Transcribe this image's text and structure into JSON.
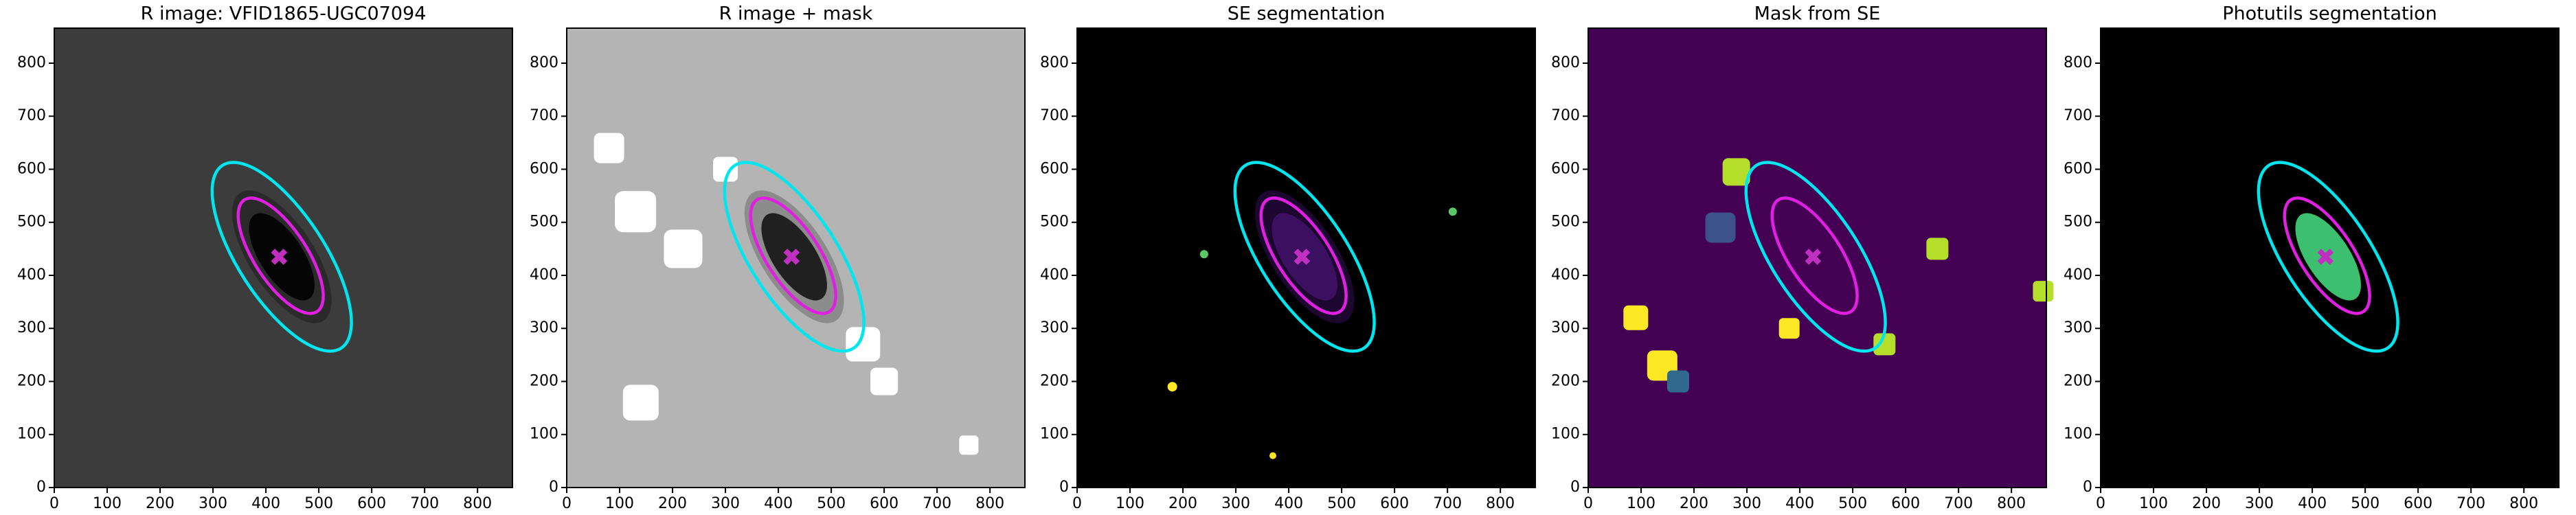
{
  "chart_data": [
    {
      "type": "image",
      "title": "R image: VFID1865-UGC07094",
      "background": "#3c3c3c",
      "xlim": [
        0,
        866
      ],
      "ylim": [
        0,
        866
      ],
      "xticks": [
        0,
        100,
        200,
        300,
        400,
        500,
        600,
        700,
        800
      ],
      "yticks": [
        0,
        100,
        200,
        300,
        400,
        500,
        600,
        700,
        800
      ],
      "ellipses": [
        {
          "center": [
            430,
            435
          ],
          "semi_major": 206,
          "semi_minor": 82,
          "angle": -57,
          "color": "#00e5ee"
        },
        {
          "center": [
            428,
            437
          ],
          "semi_major": 126,
          "semi_minor": 50,
          "angle": -57,
          "color": "#e020e0"
        }
      ],
      "marker": {
        "x": 425,
        "y": 435,
        "color": "#c030c0"
      }
    },
    {
      "type": "image",
      "title": "R image + mask",
      "background": "#b4b4b4",
      "xlim": [
        0,
        866
      ],
      "ylim": [
        0,
        866
      ],
      "xticks": [
        0,
        100,
        200,
        300,
        400,
        500,
        600,
        700,
        800
      ],
      "yticks": [
        0,
        100,
        200,
        300,
        400,
        500,
        600,
        700,
        800
      ],
      "ellipses": [
        {
          "center": [
            430,
            435
          ],
          "semi_major": 206,
          "semi_minor": 82,
          "angle": -57,
          "color": "#00e5ee"
        },
        {
          "center": [
            428,
            437
          ],
          "semi_major": 126,
          "semi_minor": 50,
          "angle": -57,
          "color": "#e020e0"
        }
      ],
      "marker": {
        "x": 425,
        "y": 435,
        "color": "#c030c0"
      }
    },
    {
      "type": "image",
      "title": "SE segmentation",
      "background": "#000000",
      "xlim": [
        0,
        866
      ],
      "ylim": [
        0,
        866
      ],
      "xticks": [
        0,
        100,
        200,
        300,
        400,
        500,
        600,
        700,
        800
      ],
      "yticks": [
        0,
        100,
        200,
        300,
        400,
        500,
        600,
        700,
        800
      ],
      "ellipses": [
        {
          "center": [
            430,
            435
          ],
          "semi_major": 206,
          "semi_minor": 82,
          "angle": -57,
          "color": "#00e5ee"
        },
        {
          "center": [
            428,
            437
          ],
          "semi_major": 126,
          "semi_minor": 50,
          "angle": -57,
          "color": "#e020e0"
        }
      ],
      "marker": {
        "x": 425,
        "y": 435,
        "color": "#c030c0"
      }
    },
    {
      "type": "image",
      "title": "Mask from SE",
      "background": "#440154",
      "xlim": [
        0,
        866
      ],
      "ylim": [
        0,
        866
      ],
      "xticks": [
        0,
        100,
        200,
        300,
        400,
        500,
        600,
        700,
        800
      ],
      "yticks": [
        0,
        100,
        200,
        300,
        400,
        500,
        600,
        700,
        800
      ],
      "ellipses": [
        {
          "center": [
            430,
            435
          ],
          "semi_major": 206,
          "semi_minor": 82,
          "angle": -57,
          "color": "#00e5ee"
        },
        {
          "center": [
            428,
            437
          ],
          "semi_major": 126,
          "semi_minor": 50,
          "angle": -57,
          "color": "#e020e0"
        }
      ],
      "marker": {
        "x": 425,
        "y": 435,
        "color": "#c030c0"
      }
    },
    {
      "type": "image",
      "title": "Photutils segmentation",
      "background": "#000000",
      "xlim": [
        0,
        866
      ],
      "ylim": [
        0,
        866
      ],
      "xticks": [
        0,
        100,
        200,
        300,
        400,
        500,
        600,
        700,
        800
      ],
      "yticks": [
        0,
        100,
        200,
        300,
        400,
        500,
        600,
        700,
        800
      ],
      "ellipses": [
        {
          "center": [
            430,
            435
          ],
          "semi_major": 206,
          "semi_minor": 82,
          "angle": -57,
          "color": "#00e5ee"
        },
        {
          "center": [
            428,
            437
          ],
          "semi_major": 126,
          "semi_minor": 50,
          "angle": -57,
          "color": "#e020e0"
        }
      ],
      "marker": {
        "x": 425,
        "y": 435,
        "color": "#c030c0"
      }
    }
  ]
}
